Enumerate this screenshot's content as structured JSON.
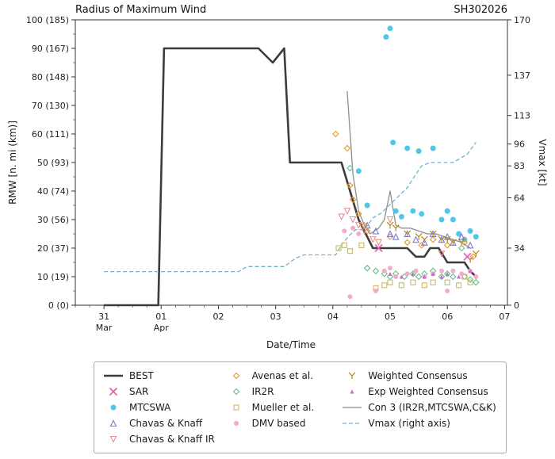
{
  "chart_data": {
    "type": "line-scatter",
    "title": "Radius of Maximum Wind",
    "storm_id": "SH302026",
    "xlabel": "Date/Time",
    "ylabel_left": "RMW [n. mi (km)]",
    "ylabel_right": "Vmax [kt]",
    "grid": false,
    "legend_position": "bottom",
    "colors": {
      "frame": "#333333",
      "tick_text": "#222222",
      "background": "#ffffff"
    },
    "x_axis": {
      "range": [
        -0.5,
        7.05
      ],
      "major_ticks": [
        {
          "x": 0,
          "label": "31",
          "sub": "Mar"
        },
        {
          "x": 1,
          "label": "01",
          "sub": "Apr"
        },
        {
          "x": 2,
          "label": "02"
        },
        {
          "x": 3,
          "label": "03"
        },
        {
          "x": 4,
          "label": "04"
        },
        {
          "x": 5,
          "label": "05"
        },
        {
          "x": 6,
          "label": "06"
        },
        {
          "x": 7,
          "label": "07"
        }
      ]
    },
    "y_left_axis": {
      "range": [
        0,
        100
      ],
      "ticks": [
        {
          "v": 0,
          "label": "0 (0)"
        },
        {
          "v": 10,
          "label": "10 (19)"
        },
        {
          "v": 20,
          "label": "20 (37)"
        },
        {
          "v": 30,
          "label": "30 (56)"
        },
        {
          "v": 40,
          "label": "40 (74)"
        },
        {
          "v": 50,
          "label": "50 (93)"
        },
        {
          "v": 60,
          "label": "60 (111)"
        },
        {
          "v": 70,
          "label": "70 (130)"
        },
        {
          "v": 80,
          "label": "80 (148)"
        },
        {
          "v": 90,
          "label": "90 (167)"
        },
        {
          "v": 100,
          "label": "100 (185)"
        }
      ]
    },
    "y_right_axis": {
      "range": [
        0,
        170
      ],
      "ticks": [
        0,
        34,
        64,
        83,
        96,
        113,
        137,
        170
      ]
    },
    "series": [
      {
        "name": "BEST",
        "kind": "line",
        "color": "#3c3c3c",
        "width": 2.6,
        "data": [
          [
            0,
            0
          ],
          [
            0.95,
            0
          ],
          [
            1.05,
            90
          ],
          [
            2.7,
            90
          ],
          [
            2.95,
            85
          ],
          [
            3.15,
            90
          ],
          [
            3.25,
            50
          ],
          [
            4.15,
            50
          ],
          [
            4.3,
            40
          ],
          [
            4.45,
            30
          ],
          [
            4.6,
            24
          ],
          [
            4.7,
            20
          ],
          [
            5.3,
            20
          ],
          [
            5.45,
            17
          ],
          [
            5.6,
            17
          ],
          [
            5.7,
            20
          ],
          [
            5.85,
            20
          ],
          [
            6.0,
            15
          ],
          [
            6.3,
            15
          ],
          [
            6.4,
            12
          ],
          [
            6.5,
            10
          ]
        ]
      },
      {
        "name": "Vmax (right axis)",
        "kind": "line",
        "axis": "right",
        "color": "#6fb4c9",
        "width": 1.3,
        "dash": "5 3",
        "data": [
          [
            0,
            20
          ],
          [
            2.35,
            20
          ],
          [
            2.5,
            23
          ],
          [
            3.15,
            23
          ],
          [
            3.35,
            28
          ],
          [
            3.5,
            30
          ],
          [
            4.05,
            30
          ],
          [
            4.15,
            36
          ],
          [
            4.3,
            42
          ],
          [
            4.4,
            45
          ],
          [
            4.55,
            45
          ],
          [
            4.7,
            52
          ],
          [
            4.85,
            55
          ],
          [
            5.0,
            60
          ],
          [
            5.15,
            65
          ],
          [
            5.3,
            70
          ],
          [
            5.45,
            78
          ],
          [
            5.55,
            83
          ],
          [
            5.7,
            85
          ],
          [
            6.1,
            85
          ],
          [
            6.2,
            87
          ],
          [
            6.35,
            90
          ],
          [
            6.5,
            97
          ]
        ]
      },
      {
        "name": "Con 3 (IR2R,MTCSWA,C&K)",
        "kind": "line",
        "color": "#8e8e8e",
        "width": 1.3,
        "data": [
          [
            4.25,
            75
          ],
          [
            4.35,
            46
          ],
          [
            4.45,
            33
          ],
          [
            4.55,
            28
          ],
          [
            4.65,
            25
          ],
          [
            4.8,
            27
          ],
          [
            4.9,
            30
          ],
          [
            5.0,
            40
          ],
          [
            5.1,
            28
          ],
          [
            5.2,
            27
          ],
          [
            5.35,
            27
          ],
          [
            5.5,
            26
          ],
          [
            5.65,
            25
          ],
          [
            5.8,
            25
          ],
          [
            5.95,
            24
          ],
          [
            6.1,
            23
          ],
          [
            6.25,
            22
          ],
          [
            6.4,
            20
          ]
        ]
      },
      {
        "name": "MTCSWA",
        "kind": "scatter",
        "marker": "circle",
        "color": "#53c6e8",
        "size": 7,
        "data": [
          [
            4.45,
            47
          ],
          [
            4.6,
            35
          ],
          [
            4.93,
            94
          ],
          [
            5.0,
            97
          ],
          [
            5.05,
            57
          ],
          [
            5.1,
            33
          ],
          [
            5.2,
            31
          ],
          [
            5.3,
            55
          ],
          [
            5.4,
            33
          ],
          [
            5.5,
            54
          ],
          [
            5.55,
            32
          ],
          [
            5.75,
            55
          ],
          [
            5.9,
            30
          ],
          [
            6.0,
            33
          ],
          [
            6.1,
            30
          ],
          [
            6.2,
            25
          ],
          [
            6.3,
            23
          ],
          [
            6.4,
            26
          ],
          [
            6.5,
            24
          ]
        ]
      },
      {
        "name": "Avenas et al.",
        "kind": "scatter",
        "marker": "diamond",
        "color": "#e8962d",
        "size": 7,
        "data": [
          [
            4.05,
            60
          ],
          [
            4.25,
            55
          ],
          [
            4.3,
            42
          ],
          [
            4.35,
            37
          ],
          [
            4.45,
            32
          ],
          [
            4.55,
            28
          ],
          [
            4.6,
            26
          ],
          [
            5.0,
            24
          ],
          [
            5.3,
            22
          ],
          [
            5.55,
            21
          ],
          [
            5.75,
            23
          ],
          [
            6.0,
            21
          ],
          [
            6.3,
            22
          ],
          [
            6.45,
            17
          ]
        ]
      },
      {
        "name": "IR2R",
        "kind": "scatter",
        "marker": "diamond",
        "color": "#67c089",
        "size": 7,
        "data": [
          [
            4.3,
            48
          ],
          [
            4.6,
            13
          ],
          [
            4.75,
            12
          ],
          [
            4.9,
            11
          ],
          [
            5.0,
            10
          ],
          [
            5.1,
            11
          ],
          [
            5.25,
            10
          ],
          [
            5.4,
            11
          ],
          [
            5.5,
            10
          ],
          [
            5.6,
            11
          ],
          [
            5.75,
            12
          ],
          [
            5.9,
            10
          ],
          [
            6.0,
            11
          ],
          [
            6.1,
            10
          ],
          [
            6.25,
            20
          ],
          [
            6.3,
            10
          ],
          [
            6.4,
            9
          ],
          [
            6.5,
            8
          ]
        ]
      },
      {
        "name": "Mueller et al.",
        "kind": "scatter",
        "marker": "square",
        "color": "#cdb86a",
        "size": 6,
        "data": [
          [
            4.1,
            20
          ],
          [
            4.2,
            21
          ],
          [
            4.3,
            19
          ],
          [
            4.5,
            21
          ],
          [
            4.75,
            6
          ],
          [
            4.9,
            7
          ],
          [
            5.0,
            8
          ],
          [
            5.2,
            7
          ],
          [
            5.4,
            8
          ],
          [
            5.6,
            7
          ],
          [
            5.75,
            8
          ],
          [
            6.0,
            8
          ],
          [
            6.2,
            7
          ],
          [
            6.3,
            10
          ],
          [
            6.4,
            8
          ]
        ]
      },
      {
        "name": "DMV based",
        "kind": "scatter",
        "marker": "circle",
        "color": "#f3abc9",
        "size": 6,
        "data": [
          [
            4.2,
            26
          ],
          [
            4.35,
            27
          ],
          [
            4.45,
            25
          ],
          [
            4.3,
            3
          ],
          [
            4.75,
            5
          ],
          [
            4.9,
            12
          ],
          [
            5.0,
            13
          ],
          [
            5.1,
            10
          ],
          [
            5.3,
            11
          ],
          [
            5.45,
            12
          ],
          [
            5.6,
            10
          ],
          [
            5.75,
            11
          ],
          [
            5.9,
            12
          ],
          [
            6.0,
            5
          ],
          [
            6.1,
            12
          ],
          [
            6.25,
            11
          ],
          [
            6.4,
            12
          ],
          [
            6.5,
            10
          ]
        ]
      },
      {
        "name": "Chavas & Knaff",
        "kind": "scatter",
        "marker": "triangle-up",
        "color": "#7b7bd2",
        "size": 7,
        "data": [
          [
            4.6,
            28
          ],
          [
            4.75,
            26
          ],
          [
            5.0,
            25
          ],
          [
            5.1,
            24
          ],
          [
            5.3,
            25
          ],
          [
            5.45,
            23
          ],
          [
            5.6,
            22
          ],
          [
            5.75,
            25
          ],
          [
            5.9,
            23
          ],
          [
            6.0,
            24
          ],
          [
            6.1,
            22
          ],
          [
            6.25,
            24
          ],
          [
            6.4,
            21
          ]
        ]
      },
      {
        "name": "Chavas & Knaff IR",
        "kind": "scatter",
        "marker": "triangle-down",
        "color": "#ea9090",
        "size": 7,
        "data": [
          [
            4.15,
            31
          ],
          [
            4.25,
            33
          ],
          [
            4.35,
            30
          ],
          [
            4.45,
            28
          ],
          [
            4.55,
            26
          ],
          [
            4.7,
            23
          ],
          [
            4.8,
            22
          ],
          [
            5.0,
            30
          ],
          [
            5.9,
            18
          ]
        ]
      },
      {
        "name": "Weighted Consensus",
        "kind": "scatter",
        "marker": "tri-y",
        "color": "#b8860b",
        "size": 8,
        "data": [
          [
            5.0,
            28
          ],
          [
            5.1,
            27
          ],
          [
            5.3,
            25
          ],
          [
            5.5,
            24
          ],
          [
            5.6,
            23
          ],
          [
            5.75,
            25
          ],
          [
            5.9,
            23
          ],
          [
            6.0,
            23
          ],
          [
            6.1,
            22
          ],
          [
            6.25,
            22
          ],
          [
            6.4,
            16
          ],
          [
            6.5,
            18
          ]
        ]
      },
      {
        "name": "Exp Weighted Consensus",
        "kind": "scatter",
        "marker": "triangle-up-filled",
        "color": "#c969c9",
        "size": 5,
        "data": [
          [
            5.0,
            11
          ],
          [
            5.2,
            10
          ],
          [
            5.4,
            11
          ],
          [
            5.6,
            10
          ],
          [
            5.75,
            11
          ],
          [
            5.9,
            10
          ],
          [
            6.0,
            11
          ],
          [
            6.2,
            10
          ],
          [
            6.4,
            12
          ]
        ]
      },
      {
        "name": "SAR",
        "kind": "scatter",
        "marker": "x",
        "color": "#e05fae",
        "size": 9,
        "data": [
          [
            4.8,
            20
          ],
          [
            6.35,
            17
          ]
        ]
      }
    ],
    "legend_columns": [
      [
        "BEST",
        "SAR",
        "MTCSWA",
        "Chavas & Knaff",
        "Chavas & Knaff IR"
      ],
      [
        "Avenas et al.",
        "IR2R",
        "Mueller et al.",
        "DMV based"
      ],
      [
        "Weighted Consensus",
        "Exp Weighted Consensus",
        "Con 3 (IR2R,MTCSWA,C&K)",
        "Vmax (right axis)"
      ]
    ]
  }
}
